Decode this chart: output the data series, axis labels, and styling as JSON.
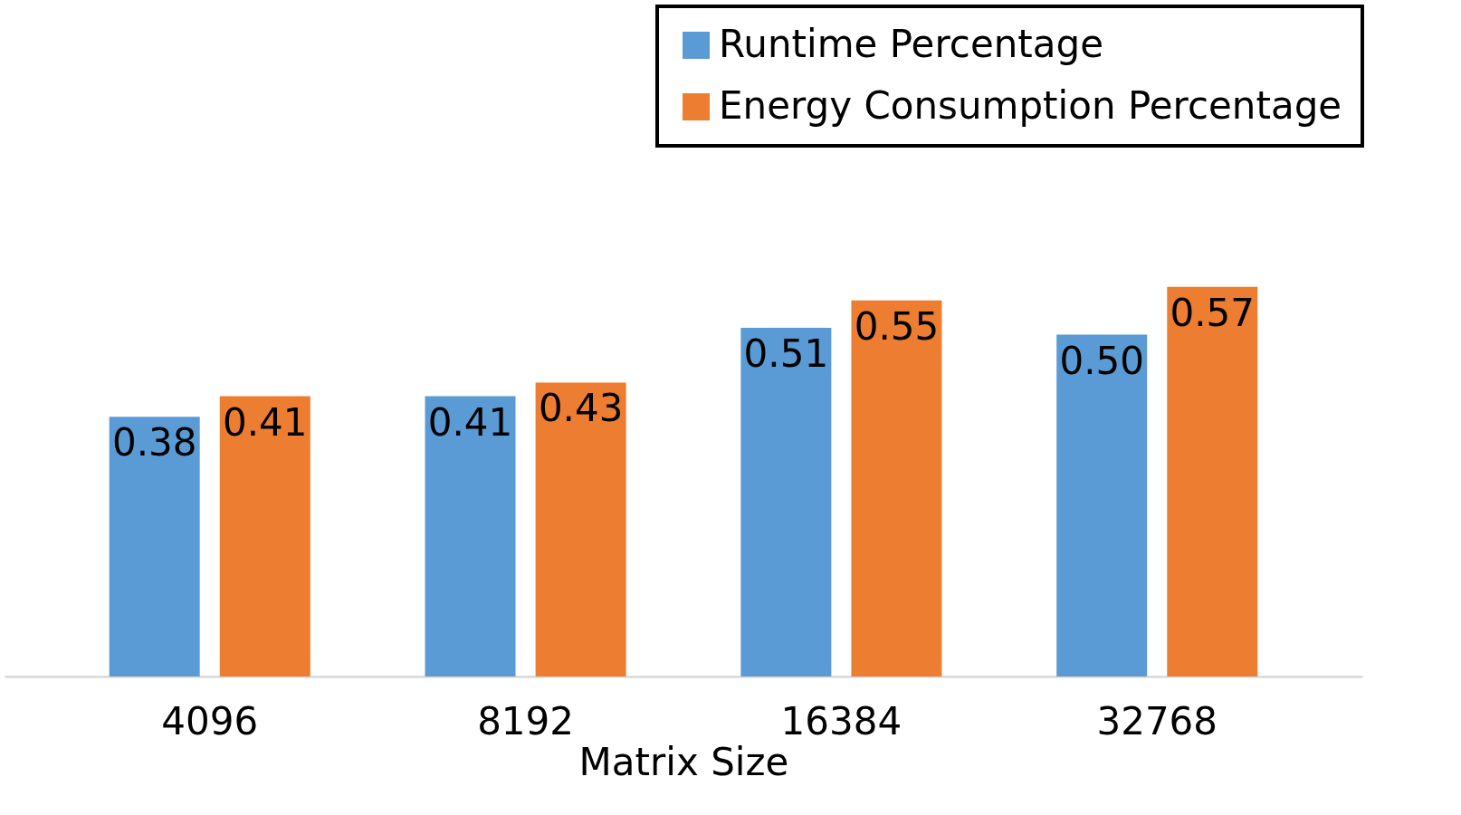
{
  "chart_data": {
    "type": "bar",
    "xlabel": "Matrix Size",
    "categories": [
      "4096",
      "8192",
      "16384",
      "32768"
    ],
    "series": [
      {
        "name": "Runtime Percentage",
        "color": "#5b9bd5",
        "values": [
          0.38,
          0.41,
          0.51,
          0.5
        ],
        "value_labels": [
          "0.38",
          "0.41",
          "0.51",
          "0.50"
        ]
      },
      {
        "name": "Energy Consumption Percentage",
        "color": "#ed7d31",
        "values": [
          0.41,
          0.43,
          0.55,
          0.57
        ],
        "value_labels": [
          "0.41",
          "0.43",
          "0.55",
          "0.57"
        ]
      }
    ],
    "legend": "top right",
    "grid": false
  }
}
